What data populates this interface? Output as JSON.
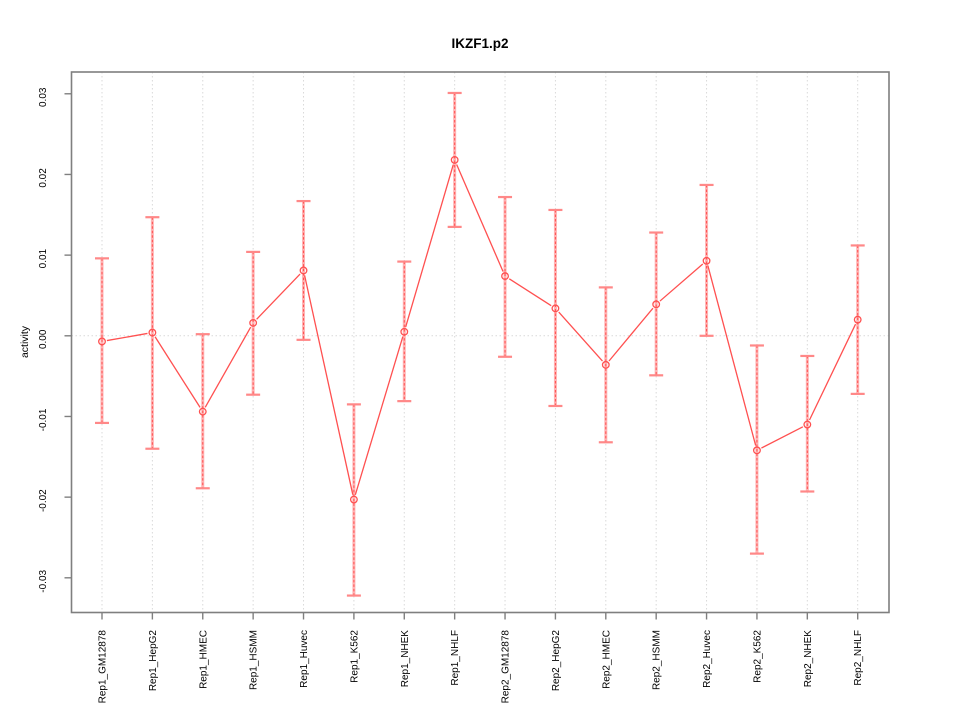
{
  "window": {
    "background_color": "#ffffff"
  },
  "chart_data": {
    "type": "line",
    "title": "IKZF1.p2",
    "xlabel": "",
    "ylabel": "activity",
    "legend": "none",
    "grid": {
      "vertical_gridlines": "dotted line at every category",
      "horizontal_gridlines": "dotted line at y=0 only"
    },
    "categories": [
      "Rep1_GM12878",
      "Rep1_HepG2",
      "Rep1_HMEC",
      "Rep1_HSMM",
      "Rep1_Huvec",
      "Rep1_K562",
      "Rep1_NHEK",
      "Rep1_NHLF",
      "Rep2_GM12878",
      "Rep2_HepG2",
      "Rep2_HMEC",
      "Rep2_HSMM",
      "Rep2_Huvec",
      "Rep2_K562",
      "Rep2_NHEK",
      "Rep2_NHLF"
    ],
    "series": [
      {
        "name": "activity",
        "marker": "open-circle",
        "values": [
          -0.0007,
          0.0004,
          -0.0094,
          0.0016,
          0.0081,
          -0.0203,
          0.0005,
          0.0218,
          0.0074,
          0.0034,
          -0.0036,
          0.0039,
          0.0093,
          -0.0142,
          -0.011,
          0.002
        ],
        "error_upper": [
          0.0096,
          0.0147,
          0.0002,
          0.0104,
          0.0167,
          -0.0085,
          0.0092,
          0.0301,
          0.0172,
          0.0156,
          0.006,
          0.0128,
          0.0187,
          -0.0012,
          -0.0025,
          0.0112
        ],
        "error_lower": [
          -0.0108,
          -0.014,
          -0.0189,
          -0.0073,
          -0.0005,
          -0.0322,
          -0.0081,
          0.0135,
          -0.0026,
          -0.0087,
          -0.0132,
          -0.0049,
          0.0,
          -0.027,
          -0.0193,
          -0.0072
        ]
      }
    ],
    "yticks": [
      0.03,
      0.02,
      0.01,
      0.0,
      -0.01,
      -0.02,
      -0.03
    ],
    "ytick_labels": [
      "0.03",
      "0.02",
      "0.01",
      "0.00",
      "-0.01",
      "-0.02",
      "-0.03"
    ],
    "ylim": [
      -0.0343,
      0.0327
    ],
    "colors": {
      "series_line": "#ff5050",
      "marker_stroke": "#ff5050",
      "error_bar_band": "#ffb3b3",
      "error_bar_core": "#ff5050",
      "error_bar_cap": "#ff8888",
      "gridline": "#d9d9d9",
      "axis_frame": "#7f7f7f",
      "text": "#000000",
      "background": "#ffffff"
    }
  }
}
